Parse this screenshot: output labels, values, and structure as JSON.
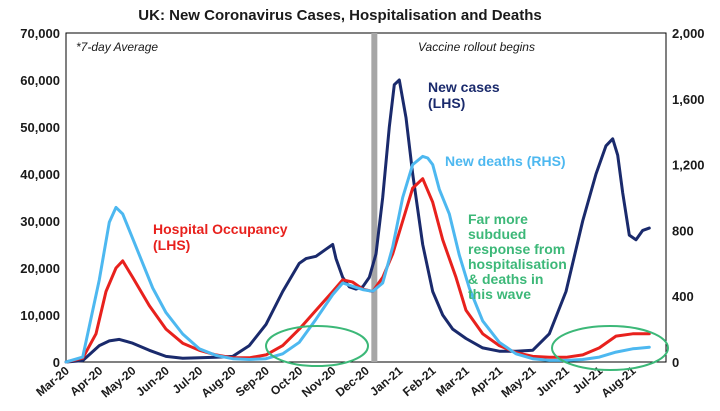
{
  "chart_data": {
    "type": "line",
    "title": "UK: New Coronavirus Cases, Hospitalisation and Deaths",
    "note": "*7-day Average",
    "vaccine_label": "Vaccine rollout begins",
    "left_axis": {
      "range": [
        0,
        70000
      ],
      "ticks": [
        "0",
        "10,000",
        "20,000",
        "30,000",
        "40,000",
        "50,000",
        "60,000",
        "70,000"
      ]
    },
    "right_axis": {
      "range": [
        0,
        2000
      ],
      "ticks": [
        "0",
        "400",
        "800",
        "1,200",
        "1,600",
        "2,000"
      ]
    },
    "x_ticks": [
      "Mar-20",
      "Apr-20",
      "May-20",
      "Jun-20",
      "Jul-20",
      "Aug-20",
      "Sep-20",
      "Oct-20",
      "Nov-20",
      "Dec-20",
      "Jan-21",
      "Feb-21",
      "Mar-21",
      "Apr-21",
      "May-21",
      "Jun-21",
      "Jul-21",
      "Aug-21"
    ],
    "vaccine_month_index": 9.25,
    "annotations": {
      "new_cases": [
        "New cases",
        "(LHS)"
      ],
      "new_deaths": [
        "New deaths (RHS)"
      ],
      "hospital": [
        "Hospital Occupancy",
        "(LHS)"
      ],
      "subdued": [
        "Far more",
        "subdued",
        "response from",
        "hospitalisation",
        "& deaths in",
        "this wave"
      ]
    },
    "colors": {
      "cases": "#1a2a6c",
      "deaths": "#4db8f0",
      "hospital": "#e8211d",
      "highlight": "#3cb878",
      "vaccine": "#a6a6a6"
    },
    "series": [
      {
        "name": "New cases",
        "axis": "left",
        "x": [
          0,
          0.5,
          1,
          1.3,
          1.6,
          2,
          2.5,
          3,
          3.5,
          4,
          4.5,
          5,
          5.5,
          6,
          6.5,
          7,
          7.2,
          7.5,
          7.8,
          8,
          8.1,
          8.3,
          8.5,
          8.7,
          8.9,
          9.1,
          9.3,
          9.5,
          9.7,
          9.85,
          10,
          10.2,
          10.4,
          10.7,
          11,
          11.3,
          11.6,
          12,
          12.5,
          13,
          13.5,
          14,
          14.5,
          15,
          15.5,
          15.9,
          16.2,
          16.4,
          16.55,
          16.7,
          16.9,
          17.1,
          17.3,
          17.5
        ],
        "values": [
          0,
          300,
          3500,
          4500,
          4800,
          4000,
          2500,
          1200,
          800,
          900,
          1000,
          1200,
          3500,
          8000,
          15000,
          21000,
          22000,
          22500,
          24000,
          25000,
          22000,
          18000,
          16000,
          15500,
          16000,
          18000,
          23000,
          35000,
          50000,
          59000,
          60000,
          52000,
          40000,
          25000,
          15000,
          10000,
          7000,
          5000,
          3000,
          2300,
          2300,
          2500,
          6000,
          15000,
          30000,
          40000,
          46000,
          47500,
          44000,
          36000,
          27000,
          26000,
          28000,
          28500
        ]
      },
      {
        "name": "Hospital Occupancy",
        "axis": "left",
        "x": [
          0,
          0.5,
          0.9,
          1.2,
          1.5,
          1.7,
          2,
          2.5,
          3,
          3.5,
          4,
          4.5,
          5,
          5.5,
          6,
          6.5,
          7,
          7.5,
          8,
          8.3,
          8.6,
          8.9,
          9.2,
          9.5,
          9.8,
          10.1,
          10.4,
          10.7,
          11,
          11.3,
          11.7,
          12,
          12.5,
          13,
          13.5,
          14,
          14.5,
          15,
          15.5,
          16,
          16.5,
          17,
          17.5
        ],
        "values": [
          0,
          800,
          6000,
          15000,
          20000,
          21500,
          18000,
          12000,
          7000,
          4000,
          2500,
          1500,
          900,
          900,
          1500,
          3500,
          7000,
          11000,
          15000,
          17500,
          17000,
          15500,
          15000,
          18000,
          23000,
          30000,
          37000,
          39000,
          34000,
          26000,
          18000,
          11000,
          6000,
          3500,
          2000,
          1200,
          1000,
          1000,
          1500,
          3000,
          5500,
          6000,
          6000
        ]
      },
      {
        "name": "New deaths",
        "axis": "right",
        "x": [
          0,
          0.5,
          1,
          1.3,
          1.5,
          1.7,
          2,
          2.3,
          2.6,
          3,
          3.5,
          4,
          4.5,
          5,
          5.5,
          6,
          6.5,
          7,
          7.5,
          8,
          8.3,
          8.6,
          8.9,
          9.2,
          9.5,
          9.8,
          10.1,
          10.4,
          10.7,
          10.85,
          11,
          11.2,
          11.5,
          11.8,
          12.1,
          12.5,
          13,
          13.5,
          14,
          14.5,
          15,
          15.5,
          16,
          16.5,
          17,
          17.5
        ],
        "values": [
          0,
          30,
          500,
          850,
          940,
          900,
          750,
          600,
          450,
          300,
          170,
          80,
          40,
          20,
          15,
          20,
          50,
          120,
          260,
          410,
          480,
          460,
          440,
          430,
          480,
          700,
          1000,
          1200,
          1250,
          1240,
          1200,
          1050,
          900,
          650,
          450,
          250,
          120,
          50,
          20,
          10,
          10,
          15,
          30,
          60,
          80,
          90
        ]
      }
    ]
  }
}
